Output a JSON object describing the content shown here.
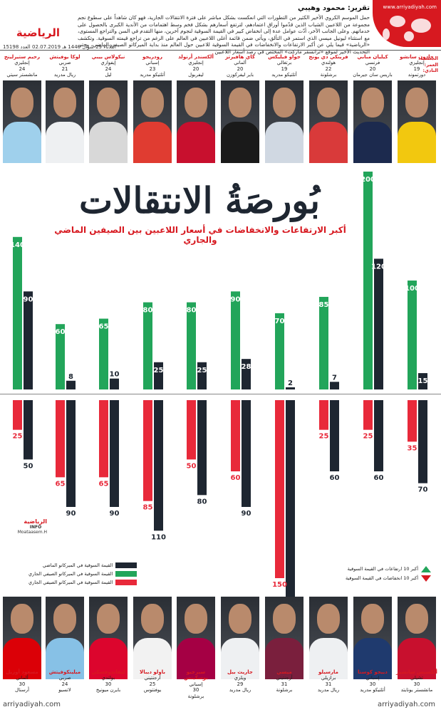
{
  "header": {
    "author": "تقرير: محمود وهيبي",
    "intro": "حمل الموسم الكروي الأخير الكثير من التطورات التي انعكست بشكل مباشر على فترة الانتقالات الجارية، فهو كان شاهداً على سطوع نجم مجموعة من اللاعبين الشباب الذين قدّموا أوراق اعتمادهم، لترتفع أسعارهم بشكل فخم وسط اهتمامات من الأندية الكبرى بالحصول على خدماتهم. وعلى الجانب الآخر، أدّت عوامل عدة إلى انخفاض كبير في القيمة السوقية لنجوم آخرين، منها التقدم في السن والتراجع المستوى، مع استثناء ليونيل ميسي الذي استمر في التألق، ويأتي ضمن قائمة أغلى اللاعبين في العالم على الرغم من تراجع قيمته السوقية. وتكشف «الرياضية» فيما يلي عن أكبر الارتفاعات والانخفاضات في القيمة السوقية للاعبين حول العالم منذ بداية الميركاتو الصيفي الماضي، وحتى التحديث الأخير لموقع «ترانسفر ماركت» المختص في رصد أسعار اللاعبين",
    "logo": "الرياضية",
    "date_line": "الثلاثاء 29 شوال 1440 هـ 02.07.2019 العدد 15198",
    "website": "www.arriyadiyah.com"
  },
  "labels": {
    "nationality": "الجنسية:",
    "age": "العمر:",
    "club": "النادي:"
  },
  "title": "بُورصَةُ الانتقالات",
  "subtitle": "أكبر الارتفاعات والانخفاضات في أسعار اللاعبين بين الصيفين الماضي والجاري",
  "legend_chart": [
    {
      "label": "القيمة السوقية في الميركاتو الماضي",
      "color": "#1e2631"
    },
    {
      "label": "القيمة السوقية في الميركاتو الصيفي الجاري",
      "color": "#22a55a"
    },
    {
      "label": "القيمة السوقية في الميركاتو الصيفي الجاري",
      "color": "#e8293a"
    }
  ],
  "legend_top10": {
    "up": "أكبر 10 ارتفاعات في القيمة السوقية",
    "down": "أكبر 10 انخفاضات في القيمة السوقية"
  },
  "stamp": {
    "logo": "الرياضية",
    "sub": "INFO",
    "credit": "Moataasem.H"
  },
  "risers": [
    {
      "name": "جادون سانشو",
      "nat": "إنجليزي",
      "age": "19",
      "club": "دورتموند",
      "shirt": "#f2c80f"
    },
    {
      "name": "كيليان مبابي",
      "nat": "فرنسي",
      "age": "20",
      "club": "باريس سان جيرمان",
      "shirt": "#1c2a4e"
    },
    {
      "name": "فرينكي دي يونج",
      "nat": "هولندي",
      "age": "22",
      "club": "برشلونة",
      "shirt": "#d93a3a"
    },
    {
      "name": "جواو فيليكس",
      "nat": "برتغالي",
      "age": "19",
      "club": "أتلتيكو مدريد",
      "shirt": "#d0d8e2"
    },
    {
      "name": "كاي هافيرتز",
      "nat": "ألماني",
      "age": "20",
      "club": "باير ليفركوزن",
      "shirt": "#1a1a1a"
    },
    {
      "name": "ألكسندر أرنولد",
      "nat": "إنجليزي",
      "age": "20",
      "club": "ليفربول",
      "shirt": "#c8102e"
    },
    {
      "name": "رودريجو",
      "nat": "إسباني",
      "age": "23",
      "club": "أتلتيكو مدريد",
      "shirt": "#e03c31"
    },
    {
      "name": "نيكولاس بيبي",
      "nat": "إيفواري",
      "age": "24",
      "club": "ليل",
      "shirt": "#d8d8d8"
    },
    {
      "name": "لوكا يوفيتش",
      "nat": "صربي",
      "age": "21",
      "club": "ريال مدريد",
      "shirt": "#eef0f2"
    },
    {
      "name": "رحيم ستيرلينج",
      "nat": "إنجليزي",
      "age": "24",
      "club": "مانشستر سيتي",
      "shirt": "#9fd0ec"
    }
  ],
  "fallers": [
    {
      "name": "ألكسيس سانشيز",
      "nat": "تشيلي",
      "age": "30",
      "club": "مانشستر يونايتد",
      "shirt": "#c8102e"
    },
    {
      "name": "دييجو كوستا",
      "nat": "إسباني",
      "age": "30",
      "club": "أتلتيكو مدريد",
      "shirt": "#1f3a6e"
    },
    {
      "name": "مارسيلو",
      "nat": "برازيلي",
      "age": "31",
      "club": "ريال مدريد",
      "shirt": "#eef0f2"
    },
    {
      "name": "ميسي",
      "nat": "أرجنتيني",
      "age": "31",
      "club": "برشلونة",
      "shirt": "#7a1f3d"
    },
    {
      "name": "جاريث بيل",
      "nat": "ويلزي",
      "age": "29",
      "club": "ريال مدريد",
      "shirt": "#eef0f2"
    },
    {
      "name": "سيرجيو بوسكيتس",
      "nat": "إسباني",
      "age": "30",
      "club": "برشلونة",
      "shirt": "#a50044"
    },
    {
      "name": "باولو ديبالا",
      "nat": "أرجنتيني",
      "age": "25",
      "club": "يوفنتوس",
      "shirt": "#f2f2f2"
    },
    {
      "name": "ليفاندوفسكي",
      "nat": "بولندي",
      "age": "30",
      "club": "بايرن ميونيخ",
      "shirt": "#dc052d"
    },
    {
      "name": "ميلينكوفيتش",
      "nat": "صربي",
      "age": "24",
      "club": "لاتسيو",
      "shirt": "#87c1e6"
    },
    {
      "name": "مسعود أوزيل",
      "nat": "ألماني",
      "age": "30",
      "club": "أرسنال",
      "shirt": "#db0007"
    }
  ],
  "chart_data": [
    {
      "type": "bar",
      "categories": [
        "جادون سانشو",
        "كيليان مبابي",
        "فرينكي دي يونج",
        "جواو فيليكس",
        "كاي هافيرتز",
        "ألكسندر أرنولد",
        "رودريجو",
        "نيكولاس بيبي",
        "لوكا يوفيتش",
        "رحيم ستيرلينج"
      ],
      "series": [
        {
          "name": "القيمة السوقية في الميركاتو الماضي",
          "values": [
            15,
            120,
            7,
            2,
            28,
            25,
            25,
            10,
            8,
            90
          ]
        },
        {
          "name": "القيمة السوقية في الميركاتو الصيفي الجاري",
          "values": [
            100,
            200,
            85,
            70,
            90,
            80,
            80,
            65,
            60,
            140
          ]
        }
      ],
      "ylim": [
        0,
        200
      ]
    },
    {
      "type": "bar",
      "categories": [
        "ألكسيس سانشيز",
        "دييجو كوستا",
        "مارسيلو",
        "ميسي",
        "جاريث بيل",
        "سيرجيو بوسكيتس",
        "باولو ديبالا",
        "ليفاندوفسكي",
        "ميلينكوفيتش",
        "مسعود أوزيل"
      ],
      "series": [
        {
          "name": "القيمة السوقية في الميركاتو الماضي",
          "values": [
            70,
            60,
            60,
            180,
            90,
            80,
            110,
            90,
            90,
            50
          ]
        },
        {
          "name": "القيمة السوقية في الميركاتو الصيفي الجاري",
          "values": [
            35,
            25,
            25,
            150,
            60,
            50,
            85,
            65,
            65,
            25
          ]
        }
      ],
      "ylim": [
        0,
        180
      ]
    }
  ],
  "footer": {
    "left": "arriyadiyah.com",
    "right": "arriyadiyah.com"
  }
}
